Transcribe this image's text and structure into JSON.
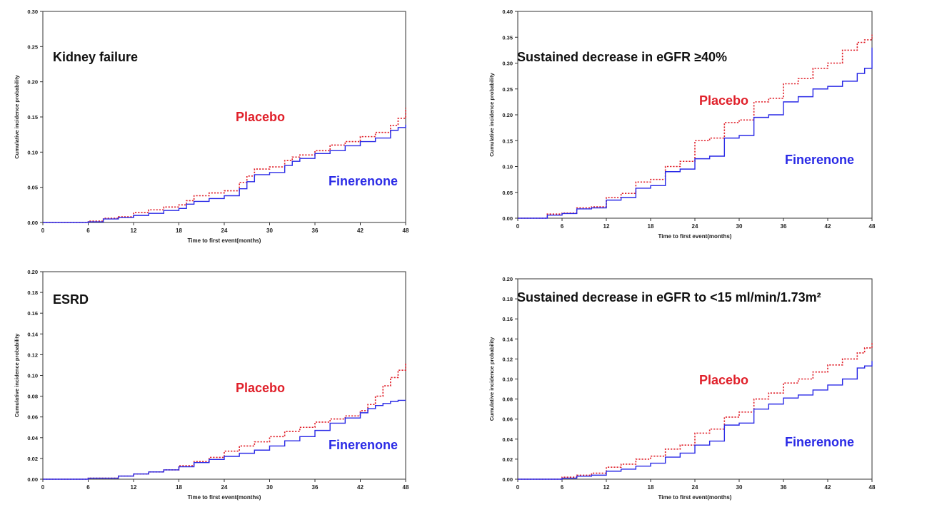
{
  "colors": {
    "placebo": "#e0202a",
    "finerenone": "#2a2ae6",
    "axis": "#333333"
  },
  "chart_data": [
    {
      "type": "line",
      "title": "Kidney failure",
      "xlabel": "Time to first event(months)",
      "ylabel": "Cumulative incidence probability",
      "xlim": [
        0,
        48
      ],
      "ylim": [
        0,
        0.3
      ],
      "xticks": [
        0,
        6,
        12,
        18,
        24,
        30,
        36,
        42,
        48
      ],
      "yticks": [
        "0.00",
        "0.05",
        "0.10",
        "0.15",
        "0.20",
        "0.25",
        "0.30"
      ],
      "grid": false,
      "series": [
        {
          "name": "Placebo",
          "style": "dotted",
          "x": [
            0,
            6,
            8,
            10,
            12,
            14,
            16,
            18,
            19,
            20,
            22,
            24,
            26,
            27,
            28,
            30,
            32,
            33,
            34,
            36,
            38,
            40,
            42,
            44,
            46,
            47,
            48
          ],
          "y": [
            0,
            0.002,
            0.006,
            0.008,
            0.014,
            0.018,
            0.022,
            0.025,
            0.031,
            0.038,
            0.042,
            0.045,
            0.057,
            0.066,
            0.076,
            0.079,
            0.088,
            0.093,
            0.096,
            0.102,
            0.11,
            0.115,
            0.122,
            0.128,
            0.138,
            0.148,
            0.163
          ]
        },
        {
          "name": "Finerenone",
          "style": "solid",
          "x": [
            0,
            6,
            8,
            10,
            12,
            14,
            16,
            18,
            19,
            20,
            22,
            24,
            26,
            27,
            28,
            30,
            32,
            33,
            34,
            36,
            38,
            40,
            42,
            44,
            46,
            47,
            48
          ],
          "y": [
            0,
            0.001,
            0.005,
            0.007,
            0.01,
            0.013,
            0.017,
            0.02,
            0.026,
            0.03,
            0.034,
            0.038,
            0.048,
            0.058,
            0.068,
            0.071,
            0.081,
            0.087,
            0.091,
            0.098,
            0.102,
            0.109,
            0.115,
            0.12,
            0.131,
            0.135,
            0.139
          ]
        }
      ]
    },
    {
      "type": "line",
      "title": "Sustained decrease in eGFR ≥40%",
      "xlabel": "Time to first event(months)",
      "ylabel": "Cumulative incidence probability",
      "xlim": [
        0,
        48
      ],
      "ylim": [
        0,
        0.4
      ],
      "xticks": [
        0,
        6,
        12,
        18,
        24,
        30,
        36,
        42,
        48
      ],
      "yticks": [
        "0.00",
        "0.05",
        "0.10",
        "0.15",
        "0.20",
        "0.25",
        "0.30",
        "0.35",
        "0.40"
      ],
      "grid": false,
      "series": [
        {
          "name": "Placebo",
          "style": "dotted",
          "x": [
            0,
            4,
            6,
            8,
            10,
            12,
            14,
            16,
            18,
            20,
            22,
            24,
            26,
            28,
            30,
            32,
            34,
            36,
            38,
            40,
            42,
            44,
            46,
            47,
            48
          ],
          "y": [
            0,
            0.008,
            0.01,
            0.02,
            0.022,
            0.04,
            0.048,
            0.07,
            0.075,
            0.1,
            0.11,
            0.15,
            0.155,
            0.185,
            0.19,
            0.225,
            0.232,
            0.26,
            0.27,
            0.29,
            0.3,
            0.325,
            0.34,
            0.345,
            0.355
          ]
        },
        {
          "name": "Finerenone",
          "style": "solid",
          "x": [
            0,
            4,
            6,
            8,
            10,
            12,
            14,
            16,
            18,
            20,
            22,
            24,
            26,
            28,
            30,
            32,
            34,
            36,
            38,
            40,
            42,
            44,
            46,
            47,
            48
          ],
          "y": [
            0,
            0.006,
            0.009,
            0.018,
            0.02,
            0.035,
            0.04,
            0.058,
            0.063,
            0.09,
            0.095,
            0.115,
            0.12,
            0.155,
            0.16,
            0.195,
            0.2,
            0.225,
            0.235,
            0.25,
            0.255,
            0.265,
            0.28,
            0.29,
            0.33
          ]
        }
      ]
    },
    {
      "type": "line",
      "title": "ESRD",
      "xlabel": "Time to first event(months)",
      "ylabel": "Cumulative incidence probability",
      "xlim": [
        0,
        48
      ],
      "ylim": [
        0,
        0.2
      ],
      "xticks": [
        0,
        6,
        12,
        18,
        24,
        30,
        36,
        42,
        48
      ],
      "yticks": [
        "0.00",
        "0.02",
        "0.04",
        "0.06",
        "0.08",
        "0.10",
        "0.12",
        "0.14",
        "0.16",
        "0.18",
        "0.20"
      ],
      "grid": false,
      "series": [
        {
          "name": "Placebo",
          "style": "dotted",
          "x": [
            0,
            6,
            10,
            12,
            14,
            16,
            18,
            20,
            22,
            24,
            26,
            28,
            30,
            32,
            34,
            36,
            38,
            40,
            42,
            43,
            44,
            45,
            46,
            47,
            48
          ],
          "y": [
            0,
            0.001,
            0.003,
            0.005,
            0.007,
            0.009,
            0.013,
            0.017,
            0.021,
            0.027,
            0.032,
            0.036,
            0.041,
            0.046,
            0.05,
            0.055,
            0.058,
            0.061,
            0.066,
            0.072,
            0.08,
            0.09,
            0.098,
            0.105,
            0.112
          ]
        },
        {
          "name": "Finerenone",
          "style": "solid",
          "x": [
            0,
            6,
            10,
            12,
            14,
            16,
            18,
            20,
            22,
            24,
            26,
            28,
            30,
            32,
            34,
            36,
            38,
            40,
            42,
            43,
            44,
            45,
            46,
            47,
            48
          ],
          "y": [
            0,
            0.001,
            0.003,
            0.005,
            0.007,
            0.009,
            0.012,
            0.016,
            0.019,
            0.022,
            0.025,
            0.028,
            0.032,
            0.037,
            0.041,
            0.047,
            0.054,
            0.059,
            0.064,
            0.068,
            0.071,
            0.073,
            0.075,
            0.076,
            0.076
          ]
        }
      ]
    },
    {
      "type": "line",
      "title": "Sustained decrease in eGFR to <15 ml/min/1.73m²",
      "xlabel": "Time to first event(months)",
      "ylabel": "Cumulative incidence probability",
      "xlim": [
        0,
        48
      ],
      "ylim": [
        0,
        0.2
      ],
      "xticks": [
        0,
        6,
        12,
        18,
        24,
        30,
        36,
        42,
        48
      ],
      "yticks": [
        "0.00",
        "0.02",
        "0.04",
        "0.06",
        "0.08",
        "0.10",
        "0.12",
        "0.14",
        "0.16",
        "0.18",
        "0.20"
      ],
      "grid": false,
      "series": [
        {
          "name": "Placebo",
          "style": "dotted",
          "x": [
            0,
            6,
            8,
            10,
            12,
            14,
            16,
            18,
            20,
            22,
            24,
            26,
            28,
            30,
            32,
            34,
            36,
            38,
            40,
            42,
            44,
            46,
            47,
            48
          ],
          "y": [
            0,
            0.002,
            0.004,
            0.006,
            0.012,
            0.015,
            0.02,
            0.023,
            0.03,
            0.034,
            0.046,
            0.05,
            0.062,
            0.067,
            0.08,
            0.086,
            0.096,
            0.1,
            0.107,
            0.114,
            0.12,
            0.126,
            0.131,
            0.137
          ]
        },
        {
          "name": "Finerenone",
          "style": "solid",
          "x": [
            0,
            6,
            8,
            10,
            12,
            14,
            16,
            18,
            20,
            22,
            24,
            26,
            28,
            30,
            32,
            34,
            36,
            38,
            40,
            42,
            44,
            46,
            47,
            48
          ],
          "y": [
            0,
            0.001,
            0.003,
            0.004,
            0.008,
            0.01,
            0.013,
            0.016,
            0.022,
            0.026,
            0.034,
            0.038,
            0.054,
            0.056,
            0.07,
            0.075,
            0.081,
            0.084,
            0.089,
            0.094,
            0.1,
            0.111,
            0.113,
            0.118
          ]
        }
      ]
    }
  ]
}
